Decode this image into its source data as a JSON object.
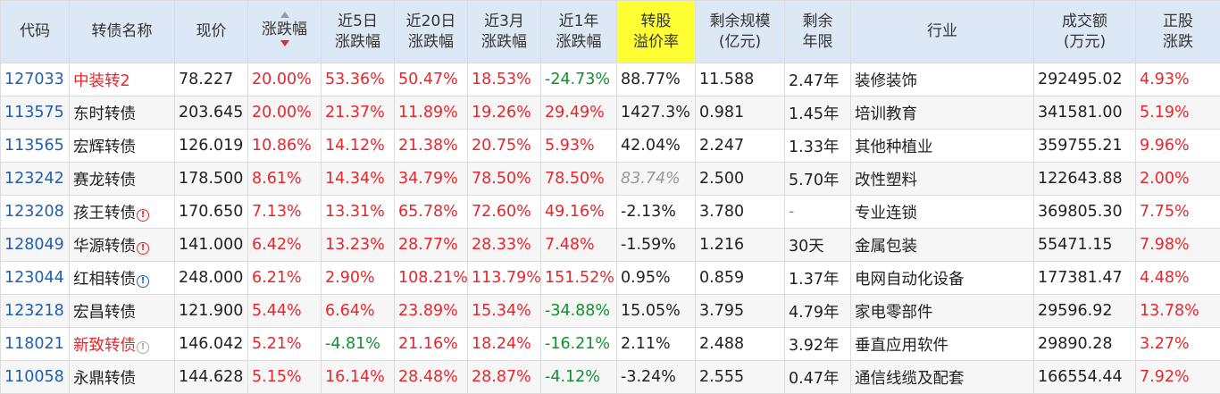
{
  "header": {
    "code": "代码",
    "name": "转债名称",
    "price": "现价",
    "change": "涨跌幅",
    "d5": [
      "近5日",
      "涨跌幅"
    ],
    "d20": [
      "近20日",
      "涨跌幅"
    ],
    "m3": [
      "近3月",
      "涨跌幅"
    ],
    "y1": [
      "近1年",
      "涨跌幅"
    ],
    "premium": [
      "转股",
      "溢价率"
    ],
    "scale": [
      "剩余规模",
      "(亿元)"
    ],
    "term": [
      "剩余",
      "年限"
    ],
    "industry": "行业",
    "volume": [
      "成交额",
      "(万元)"
    ],
    "stock_change": [
      "正股",
      "涨跌"
    ]
  },
  "colors": {
    "header_bg": "#dde8f6",
    "highlight_bg": "#ffff33",
    "up": "#e8262b",
    "down": "#11912e",
    "code": "#1f5fae"
  },
  "rows": [
    {
      "code": "127033",
      "name": "中装转2",
      "name_red": true,
      "badge": "",
      "price": "78.227",
      "change": "20.00%",
      "d5": "53.36%",
      "d20": "50.47%",
      "m3": "18.53%",
      "y1": "-24.73%",
      "premium": "88.77%",
      "scale": "11.588",
      "term": "2.47年",
      "industry": "装修装饰",
      "volume": "292495.02",
      "stock": "4.93%"
    },
    {
      "code": "113575",
      "name": "东时转债",
      "name_red": false,
      "badge": "",
      "price": "203.645",
      "change": "20.00%",
      "d5": "21.37%",
      "d20": "11.89%",
      "m3": "19.26%",
      "y1": "29.49%",
      "premium": "1427.3%",
      "scale": "0.981",
      "term": "1.45年",
      "industry": "培训教育",
      "volume": "341581.00",
      "stock": "5.19%"
    },
    {
      "code": "113565",
      "name": "宏辉转债",
      "name_red": false,
      "badge": "",
      "price": "126.019",
      "change": "10.86%",
      "d5": "14.12%",
      "d20": "21.38%",
      "m3": "20.75%",
      "y1": "5.93%",
      "premium": "42.04%",
      "scale": "2.247",
      "term": "1.33年",
      "industry": "其他种植业",
      "volume": "359755.21",
      "stock": "9.96%"
    },
    {
      "code": "123242",
      "name": "赛龙转债",
      "name_red": false,
      "badge": "",
      "price": "178.500",
      "change": "8.61%",
      "d5": "14.34%",
      "d20": "34.79%",
      "m3": "78.50%",
      "y1": "78.50%",
      "premium": "83.74%",
      "premium_na": true,
      "scale": "2.500",
      "term": "5.70年",
      "industry": "改性塑料",
      "volume": "122643.88",
      "stock": "2.00%"
    },
    {
      "code": "123208",
      "name": "孩王转债",
      "name_red": false,
      "badge": "red",
      "price": "170.650",
      "change": "7.13%",
      "d5": "13.31%",
      "d20": "65.78%",
      "m3": "72.60%",
      "y1": "49.16%",
      "premium": "-2.13%",
      "scale": "3.780",
      "term": "-",
      "industry": "专业连锁",
      "volume": "369805.30",
      "stock": "7.75%"
    },
    {
      "code": "128049",
      "name": "华源转债",
      "name_red": false,
      "badge": "red",
      "price": "141.000",
      "change": "6.42%",
      "d5": "13.23%",
      "d20": "28.77%",
      "m3": "28.33%",
      "y1": "7.48%",
      "premium": "-1.59%",
      "scale": "1.216",
      "term": "30天",
      "industry": "金属包装",
      "volume": "55471.15",
      "stock": "7.98%"
    },
    {
      "code": "123044",
      "name": "红相转债",
      "name_red": false,
      "badge": "blue",
      "price": "248.000",
      "change": "6.21%",
      "d5": "2.90%",
      "d20": "108.21%",
      "m3": "113.79%",
      "y1": "151.52%",
      "premium": "0.95%",
      "scale": "0.859",
      "term": "1.37年",
      "industry": "电网自动化设备",
      "volume": "177381.47",
      "stock": "4.48%"
    },
    {
      "code": "123218",
      "name": "宏昌转债",
      "name_red": false,
      "badge": "",
      "price": "121.900",
      "change": "5.44%",
      "d5": "6.64%",
      "d20": "23.89%",
      "m3": "15.34%",
      "y1": "-34.88%",
      "premium": "15.05%",
      "scale": "3.795",
      "term": "4.79年",
      "industry": "家电零部件",
      "volume": "29596.92",
      "stock": "13.78%"
    },
    {
      "code": "118021",
      "name": "新致转债",
      "name_red": true,
      "badge": "gray",
      "price": "146.042",
      "change": "5.21%",
      "d5": "-4.81%",
      "d20": "21.16%",
      "m3": "18.24%",
      "y1": "-16.21%",
      "premium": "2.11%",
      "scale": "2.488",
      "term": "3.92年",
      "industry": "垂直应用软件",
      "volume": "29890.28",
      "stock": "3.27%"
    },
    {
      "code": "110058",
      "name": "永鼎转债",
      "name_red": false,
      "badge": "",
      "price": "144.628",
      "change": "5.15%",
      "d5": "16.14%",
      "d20": "28.48%",
      "m3": "28.87%",
      "y1": "-4.12%",
      "premium": "-3.24%",
      "scale": "2.555",
      "term": "0.47年",
      "industry": "通信线缆及配套",
      "volume": "166554.44",
      "stock": "7.92%"
    }
  ]
}
